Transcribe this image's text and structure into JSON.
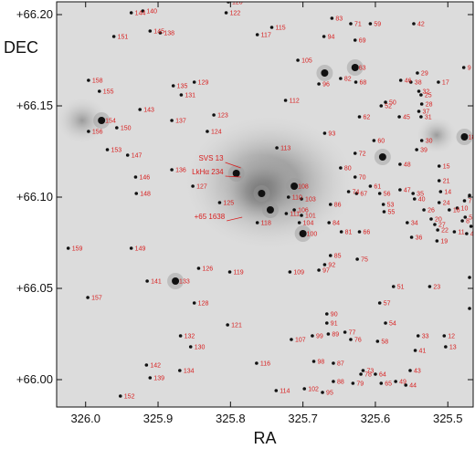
{
  "chart_data": {
    "type": "scatter",
    "xlabel": "RA",
    "ylabel": "DEC",
    "x_reversed": true,
    "xlim": [
      326.04,
      325.465
    ],
    "ylim": [
      65.985,
      66.207
    ],
    "x_ticks": [
      {
        "value": 326.0,
        "label": "326.0"
      },
      {
        "value": 325.9,
        "label": "325.9"
      },
      {
        "value": 325.8,
        "label": "325.8"
      },
      {
        "value": 325.7,
        "label": "325.7"
      },
      {
        "value": 325.6,
        "label": "325.6"
      },
      {
        "value": 325.5,
        "label": "325.5"
      }
    ],
    "y_ticks": [
      {
        "value": 66.2,
        "label": "+66.20"
      },
      {
        "value": 66.15,
        "label": "+66.15"
      },
      {
        "value": 66.1,
        "label": "+66.10"
      },
      {
        "value": 66.05,
        "label": "+66.05"
      },
      {
        "value": 66.0,
        "label": "+66.00"
      }
    ],
    "background": "grayscale nebula image",
    "colors": {
      "labels": "#d81e1e",
      "stars": "#111111",
      "nebula": "#9a9a9a"
    },
    "named_sources": [
      {
        "label": "SVS 13",
        "ra": 325.782,
        "dec": 66.116
      },
      {
        "label": "LkHα 234",
        "ra": 325.782,
        "dec": 66.111
      },
      {
        "label": "+65 1638",
        "ra": 325.78,
        "dec": 66.089
      }
    ],
    "bright_stars": [
      {
        "ra": 325.757,
        "dec": 66.102
      },
      {
        "ra": 325.792,
        "dec": 66.113
      },
      {
        "ra": 325.745,
        "dec": 66.093
      },
      {
        "ra": 325.712,
        "dec": 66.106
      },
      {
        "ra": 325.7,
        "dec": 66.08
      },
      {
        "ra": 325.477,
        "dec": 66.133
      },
      {
        "ra": 325.876,
        "dec": 66.054
      },
      {
        "ra": 325.978,
        "dec": 66.142
      },
      {
        "ra": 325.67,
        "dec": 66.168
      },
      {
        "ra": 325.628,
        "dec": 66.171
      },
      {
        "ra": 325.59,
        "dec": 66.122
      }
    ],
    "sources": [
      {
        "id": "1",
        "ra": 325.468,
        "dec": 66.084
      },
      {
        "id": "2",
        "ra": 325.47,
        "dec": 66.101
      },
      {
        "id": "3",
        "ra": 325.47,
        "dec": 66.056
      },
      {
        "id": "4",
        "ra": 325.474,
        "dec": 66.08
      },
      {
        "id": "5",
        "ra": 325.476,
        "dec": 66.089
      },
      {
        "id": "6",
        "ra": 325.47,
        "dec": 66.039
      },
      {
        "id": "7",
        "ra": 325.477,
        "dec": 66.098
      },
      {
        "id": "8",
        "ra": 325.48,
        "dec": 66.087
      },
      {
        "id": "9",
        "ra": 325.478,
        "dec": 66.171
      },
      {
        "id": "10",
        "ra": 325.487,
        "dec": 66.094
      },
      {
        "id": "11",
        "ra": 325.491,
        "dec": 66.081
      },
      {
        "id": "12",
        "ra": 325.505,
        "dec": 66.024
      },
      {
        "id": "13",
        "ra": 325.503,
        "dec": 66.018
      },
      {
        "id": "14",
        "ra": 325.51,
        "dec": 66.103
      },
      {
        "id": "15",
        "ra": 325.512,
        "dec": 66.117
      },
      {
        "id": "16",
        "ra": 325.498,
        "dec": 66.093
      },
      {
        "id": "17",
        "ra": 325.513,
        "dec": 66.163
      },
      {
        "id": "18",
        "ra": 325.477,
        "dec": 66.133
      },
      {
        "id": "19",
        "ra": 325.515,
        "dec": 66.076
      },
      {
        "id": "20",
        "ra": 325.523,
        "dec": 66.088
      },
      {
        "id": "21",
        "ra": 325.512,
        "dec": 66.109
      },
      {
        "id": "22",
        "ra": 325.514,
        "dec": 66.082
      },
      {
        "id": "23",
        "ra": 325.525,
        "dec": 66.051
      },
      {
        "id": "24",
        "ra": 325.512,
        "dec": 66.097
      },
      {
        "id": "25",
        "ra": 325.537,
        "dec": 66.156
      },
      {
        "id": "26",
        "ra": 325.533,
        "dec": 66.093
      },
      {
        "id": "27",
        "ra": 325.518,
        "dec": 66.085
      },
      {
        "id": "28",
        "ra": 325.536,
        "dec": 66.151
      },
      {
        "id": "29",
        "ra": 325.542,
        "dec": 66.168
      },
      {
        "id": "30",
        "ra": 325.536,
        "dec": 66.131
      },
      {
        "id": "31",
        "ra": 325.537,
        "dec": 66.144
      },
      {
        "id": "32",
        "ra": 325.54,
        "dec": 66.158
      },
      {
        "id": "33",
        "ra": 325.541,
        "dec": 66.024
      },
      {
        "id": "34",
        "ra": 325.556,
        "dec": 66.086
      },
      {
        "id": "35",
        "ra": 325.548,
        "dec": 66.102
      },
      {
        "id": "36",
        "ra": 325.55,
        "dec": 66.078
      },
      {
        "id": "37",
        "ra": 325.54,
        "dec": 66.147
      },
      {
        "id": "38",
        "ra": 325.551,
        "dec": 66.163
      },
      {
        "id": "39",
        "ra": 325.543,
        "dec": 66.126
      },
      {
        "id": "40",
        "ra": 325.546,
        "dec": 66.099
      },
      {
        "id": "41",
        "ra": 325.545,
        "dec": 66.016
      },
      {
        "id": "42",
        "ra": 325.547,
        "dec": 66.195
      },
      {
        "id": "43",
        "ra": 325.552,
        "dec": 66.005
      },
      {
        "id": "44",
        "ra": 325.558,
        "dec": 65.997
      },
      {
        "id": "45",
        "ra": 325.567,
        "dec": 66.144
      },
      {
        "id": "46",
        "ra": 325.565,
        "dec": 66.164
      },
      {
        "id": "47",
        "ra": 325.566,
        "dec": 66.104
      },
      {
        "id": "48",
        "ra": 325.566,
        "dec": 66.118
      },
      {
        "id": "49",
        "ra": 325.572,
        "dec": 65.999
      },
      {
        "id": "50",
        "ra": 325.586,
        "dec": 66.152
      },
      {
        "id": "51",
        "ra": 325.575,
        "dec": 66.051
      },
      {
        "id": "52",
        "ra": 325.592,
        "dec": 66.15
      },
      {
        "id": "53",
        "ra": 325.589,
        "dec": 66.096
      },
      {
        "id": "54",
        "ra": 325.586,
        "dec": 66.031
      },
      {
        "id": "55",
        "ra": 325.588,
        "dec": 66.092
      },
      {
        "id": "56",
        "ra": 325.594,
        "dec": 66.102
      },
      {
        "id": "57",
        "ra": 325.594,
        "dec": 66.042
      },
      {
        "id": "58",
        "ra": 325.597,
        "dec": 66.021
      },
      {
        "id": "59",
        "ra": 325.607,
        "dec": 66.195
      },
      {
        "id": "60",
        "ra": 325.602,
        "dec": 66.131
      },
      {
        "id": "61",
        "ra": 325.607,
        "dec": 66.106
      },
      {
        "id": "62",
        "ra": 325.622,
        "dec": 66.144
      },
      {
        "id": "63",
        "ra": 325.628,
        "dec": 66.171
      },
      {
        "id": "64",
        "ra": 325.6,
        "dec": 66.003
      },
      {
        "id": "65",
        "ra": 325.592,
        "dec": 65.998
      },
      {
        "id": "66",
        "ra": 325.622,
        "dec": 66.081
      },
      {
        "id": "67",
        "ra": 325.626,
        "dec": 66.102
      },
      {
        "id": "68",
        "ra": 325.627,
        "dec": 66.163
      },
      {
        "id": "69",
        "ra": 325.628,
        "dec": 66.186
      },
      {
        "id": "70",
        "ra": 325.628,
        "dec": 66.111
      },
      {
        "id": "71",
        "ra": 325.634,
        "dec": 66.195
      },
      {
        "id": "72",
        "ra": 325.628,
        "dec": 66.124
      },
      {
        "id": "73",
        "ra": 325.617,
        "dec": 66.005
      },
      {
        "id": "74",
        "ra": 325.637,
        "dec": 66.103
      },
      {
        "id": "75",
        "ra": 325.625,
        "dec": 66.066
      },
      {
        "id": "76",
        "ra": 325.634,
        "dec": 66.022
      },
      {
        "id": "77",
        "ra": 325.642,
        "dec": 66.026
      },
      {
        "id": "78",
        "ra": 325.62,
        "dec": 66.003
      },
      {
        "id": "79",
        "ra": 325.631,
        "dec": 65.998
      },
      {
        "id": "80",
        "ra": 325.648,
        "dec": 66.116
      },
      {
        "id": "81",
        "ra": 325.647,
        "dec": 66.081
      },
      {
        "id": "82",
        "ra": 325.648,
        "dec": 66.165
      },
      {
        "id": "83",
        "ra": 325.66,
        "dec": 66.198
      },
      {
        "id": "84",
        "ra": 325.664,
        "dec": 66.086
      },
      {
        "id": "85",
        "ra": 325.662,
        "dec": 66.068
      },
      {
        "id": "86",
        "ra": 325.662,
        "dec": 66.096
      },
      {
        "id": "87",
        "ra": 325.658,
        "dec": 66.009
      },
      {
        "id": "88",
        "ra": 325.658,
        "dec": 65.999
      },
      {
        "id": "89",
        "ra": 325.665,
        "dec": 66.025
      },
      {
        "id": "90",
        "ra": 325.667,
        "dec": 66.036
      },
      {
        "id": "91",
        "ra": 325.667,
        "dec": 66.031
      },
      {
        "id": "92",
        "ra": 325.67,
        "dec": 66.063
      },
      {
        "id": "93",
        "ra": 325.67,
        "dec": 66.135
      },
      {
        "id": "94",
        "ra": 325.671,
        "dec": 66.188
      },
      {
        "id": "95",
        "ra": 325.673,
        "dec": 65.993
      },
      {
        "id": "96",
        "ra": 325.678,
        "dec": 66.162
      },
      {
        "id": "97",
        "ra": 325.678,
        "dec": 66.06
      },
      {
        "id": "98",
        "ra": 325.685,
        "dec": 66.01
      },
      {
        "id": "99",
        "ra": 325.687,
        "dec": 66.024
      },
      {
        "id": "100",
        "ra": 325.7,
        "dec": 66.08
      },
      {
        "id": "101",
        "ra": 325.702,
        "dec": 66.09
      },
      {
        "id": "102",
        "ra": 325.698,
        "dec": 65.995
      },
      {
        "id": "103",
        "ra": 325.702,
        "dec": 66.099
      },
      {
        "id": "104",
        "ra": 325.705,
        "dec": 66.086
      },
      {
        "id": "105",
        "ra": 325.707,
        "dec": 66.175
      },
      {
        "id": "106",
        "ra": 325.712,
        "dec": 66.093
      },
      {
        "id": "107",
        "ra": 325.716,
        "dec": 66.022
      },
      {
        "id": "108",
        "ra": 325.712,
        "dec": 66.106
      },
      {
        "id": "109",
        "ra": 325.718,
        "dec": 66.059
      },
      {
        "id": "110",
        "ra": 325.72,
        "dec": 66.1
      },
      {
        "id": "111",
        "ra": 325.723,
        "dec": 66.091
      },
      {
        "id": "112",
        "ra": 325.724,
        "dec": 66.153
      },
      {
        "id": "113",
        "ra": 325.736,
        "dec": 66.127
      },
      {
        "id": "114",
        "ra": 325.737,
        "dec": 65.994
      },
      {
        "id": "115",
        "ra": 325.743,
        "dec": 66.193
      },
      {
        "id": "116",
        "ra": 325.764,
        "dec": 66.009
      },
      {
        "id": "117",
        "ra": 325.763,
        "dec": 66.189
      },
      {
        "id": "118",
        "ra": 325.763,
        "dec": 66.086
      },
      {
        "id": "119",
        "ra": 325.801,
        "dec": 66.059
      },
      {
        "id": "120",
        "ra": 325.803,
        "dec": 66.207
      },
      {
        "id": "121",
        "ra": 325.804,
        "dec": 66.03
      },
      {
        "id": "122",
        "ra": 325.806,
        "dec": 66.201
      },
      {
        "id": "123",
        "ra": 325.823,
        "dec": 66.145
      },
      {
        "id": "124",
        "ra": 325.832,
        "dec": 66.136
      },
      {
        "id": "125",
        "ra": 325.815,
        "dec": 66.097
      },
      {
        "id": "126",
        "ra": 325.844,
        "dec": 66.061
      },
      {
        "id": "127",
        "ra": 325.852,
        "dec": 66.106
      },
      {
        "id": "128",
        "ra": 325.85,
        "dec": 66.042
      },
      {
        "id": "129",
        "ra": 325.85,
        "dec": 66.163
      },
      {
        "id": "130",
        "ra": 325.855,
        "dec": 66.018
      },
      {
        "id": "131",
        "ra": 325.868,
        "dec": 66.156
      },
      {
        "id": "132",
        "ra": 325.869,
        "dec": 66.024
      },
      {
        "id": "133",
        "ra": 325.876,
        "dec": 66.054
      },
      {
        "id": "134",
        "ra": 325.87,
        "dec": 66.005
      },
      {
        "id": "135",
        "ra": 325.879,
        "dec": 66.161
      },
      {
        "id": "136",
        "ra": 325.881,
        "dec": 66.115
      },
      {
        "id": "137",
        "ra": 325.881,
        "dec": 66.142
      },
      {
        "id": "138",
        "ra": 325.897,
        "dec": 66.19
      },
      {
        "id": "139",
        "ra": 325.911,
        "dec": 66.001
      },
      {
        "id": "140",
        "ra": 325.921,
        "dec": 66.202
      },
      {
        "id": "141",
        "ra": 325.915,
        "dec": 66.054
      },
      {
        "id": "142",
        "ra": 325.916,
        "dec": 66.008
      },
      {
        "id": "143",
        "ra": 325.925,
        "dec": 66.148
      },
      {
        "id": "144",
        "ra": 325.937,
        "dec": 66.201
      },
      {
        "id": "145",
        "ra": 325.911,
        "dec": 66.191
      },
      {
        "id": "146",
        "ra": 325.931,
        "dec": 66.111
      },
      {
        "id": "147",
        "ra": 325.942,
        "dec": 66.123
      },
      {
        "id": "148",
        "ra": 325.93,
        "dec": 66.102
      },
      {
        "id": "149",
        "ra": 325.937,
        "dec": 66.072
      },
      {
        "id": "150",
        "ra": 325.957,
        "dec": 66.138
      },
      {
        "id": "151",
        "ra": 325.961,
        "dec": 66.188
      },
      {
        "id": "152",
        "ra": 325.952,
        "dec": 65.991
      },
      {
        "id": "153",
        "ra": 325.97,
        "dec": 66.126
      },
      {
        "id": "154",
        "ra": 325.978,
        "dec": 66.142
      },
      {
        "id": "155",
        "ra": 325.981,
        "dec": 66.158
      },
      {
        "id": "156",
        "ra": 325.996,
        "dec": 66.136
      },
      {
        "id": "157",
        "ra": 325.997,
        "dec": 66.045
      },
      {
        "id": "158",
        "ra": 325.996,
        "dec": 66.164
      },
      {
        "id": "159",
        "ra": 326.024,
        "dec": 66.072
      }
    ]
  }
}
